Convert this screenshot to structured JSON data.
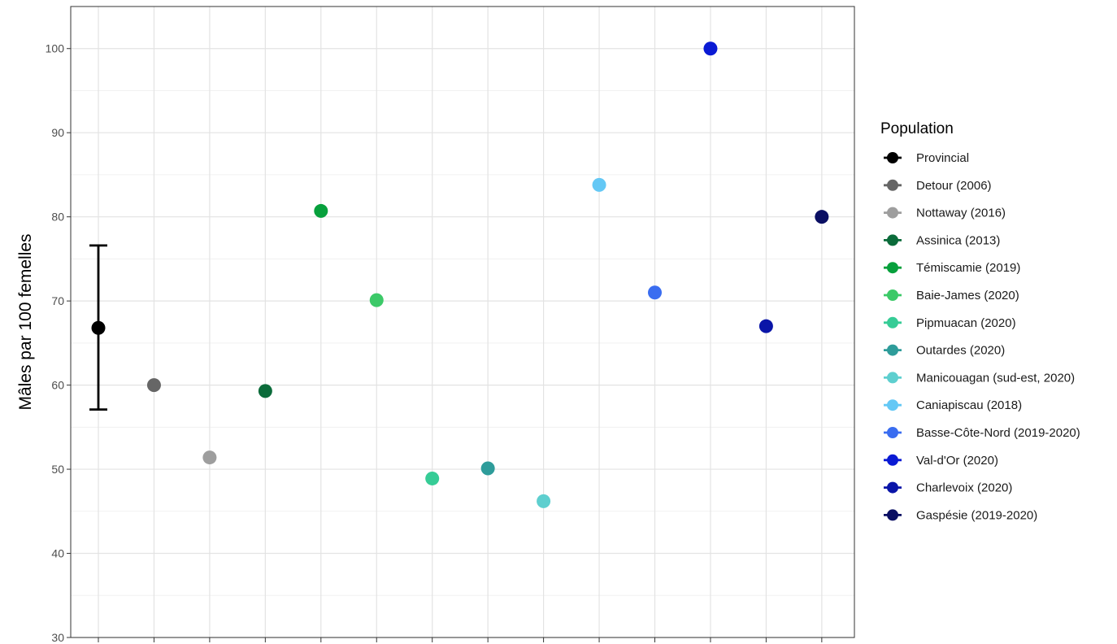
{
  "chart_data": {
    "type": "scatter",
    "xlabel": "",
    "ylabel": "Mâles par 100 femelles",
    "ylim": [
      30,
      105
    ],
    "y_ticks": [
      30,
      40,
      50,
      60,
      70,
      80,
      90,
      100
    ],
    "grid": true,
    "x_tick_labels_visible": false,
    "legend": {
      "title": "Population",
      "placement": "right"
    },
    "series": [
      {
        "name": "Provincial",
        "y": 66.8,
        "error_low": 57.1,
        "error_high": 76.6,
        "color": "#000000"
      },
      {
        "name": "Detour (2006)",
        "y": 60.0,
        "color": "#666666"
      },
      {
        "name": "Nottaway (2016)",
        "y": 51.4,
        "color": "#9e9e9e"
      },
      {
        "name": "Assinica (2013)",
        "y": 59.3,
        "color": "#0b6b3a"
      },
      {
        "name": "Témiscamie (2019)",
        "y": 80.7,
        "color": "#07a03c"
      },
      {
        "name": "Baie-James (2020)",
        "y": 70.1,
        "color": "#3cc968"
      },
      {
        "name": "Pipmuacan (2020)",
        "y": 48.9,
        "color": "#36cc96"
      },
      {
        "name": "Outardes (2020)",
        "y": 50.1,
        "color": "#2e9c9a"
      },
      {
        "name": "Manicouagan (sud-est, 2020)",
        "y": 46.2,
        "color": "#5ecfcf"
      },
      {
        "name": "Caniapiscau (2018)",
        "y": 83.8,
        "color": "#64c8f5"
      },
      {
        "name": "Basse-Côte-Nord (2019-2020)",
        "y": 71.0,
        "color": "#3a6df0"
      },
      {
        "name": "Val-d'Or (2020)",
        "y": 100.0,
        "color": "#0a1ad4"
      },
      {
        "name": "Charlevoix (2020)",
        "y": 67.0,
        "color": "#0a15a8"
      },
      {
        "name": "Gaspésie (2019-2020)",
        "y": 80.0,
        "color": "#0a0f63"
      }
    ]
  }
}
